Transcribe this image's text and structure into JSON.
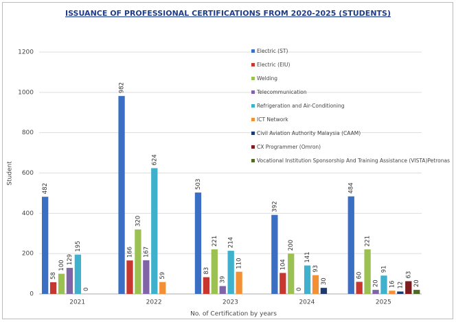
{
  "chart_data": {
    "type": "bar",
    "title": "ISSUANCE OF PROFESSIONAL CERTIFICATIONS FROM 2020-2025 (STUDENTS)",
    "y_label": "Student",
    "x_label": "No. of Certification by years",
    "categories": [
      "2021",
      "2022",
      "2023",
      "2024",
      "2025"
    ],
    "series": [
      {
        "name": "Electric (ST)",
        "color": "#3b6fc4",
        "values": [
          482,
          982,
          503,
          392,
          484
        ]
      },
      {
        "name": "Electric (EIU)",
        "color": "#c8372f",
        "values": [
          58,
          166,
          83,
          104,
          60
        ]
      },
      {
        "name": "Welding",
        "color": "#9bc152",
        "values": [
          100,
          320,
          221,
          200,
          221
        ]
      },
      {
        "name": "Telecommunication",
        "color": "#8064a8",
        "values": [
          129,
          167,
          39,
          0,
          20
        ]
      },
      {
        "name": "Refrigeration and Air-Conditioning",
        "color": "#3fb1cc",
        "values": [
          195,
          624,
          214,
          141,
          91
        ]
      },
      {
        "name": "ICT Network",
        "color": "#f39035",
        "values": [
          0,
          59,
          110,
          93,
          16
        ]
      },
      {
        "name": "Civil Aviation Authority Malaysia (CAAM)",
        "color": "#1f3a6e",
        "values": [
          null,
          null,
          null,
          30,
          12
        ]
      },
      {
        "name": "CX Programmer (Omron)",
        "color": "#7d1d1d",
        "values": [
          null,
          null,
          null,
          null,
          63
        ]
      },
      {
        "name": "Vocational Institution Sponsorship And Training Assistance (VISTA)Petronas",
        "color": "#4f6a26",
        "values": [
          null,
          null,
          null,
          null,
          20
        ]
      }
    ],
    "ylim": [
      0,
      1200
    ],
    "yticks": [
      0,
      200,
      400,
      600,
      800,
      1000,
      1200
    ],
    "grid": true
  }
}
